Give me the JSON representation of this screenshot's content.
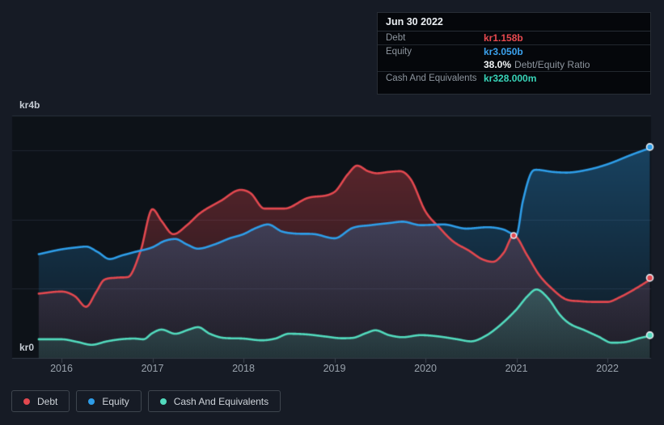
{
  "tooltip": {
    "date": "Jun 30 2022",
    "debt_label": "Debt",
    "debt_value": "kr1.158b",
    "equity_label": "Equity",
    "equity_value": "kr3.050b",
    "ratio_value": "38.0%",
    "ratio_label": "Debt/Equity Ratio",
    "cash_label": "Cash And Equivalents",
    "cash_value": "kr328.000m"
  },
  "y_axis": {
    "top": "kr4b",
    "bottom": "kr0"
  },
  "x_axis": {
    "ticks": [
      "2016",
      "2017",
      "2018",
      "2019",
      "2020",
      "2021",
      "2022"
    ]
  },
  "legend": {
    "items": [
      {
        "label": "Debt",
        "color": "#e2484f"
      },
      {
        "label": "Equity",
        "color": "#2e9de8"
      },
      {
        "label": "Cash And Equivalents",
        "color": "#52dabd"
      }
    ]
  },
  "colors": {
    "page_bg": "#161b25",
    "plot_bg": "#0d1218",
    "gridline": "#1f2530",
    "plot_top_border": "#2a313c",
    "baseline": "#333b47",
    "tick": "#3d444e",
    "marker_ring": "#e9eef3"
  },
  "chart_data": {
    "type": "area",
    "title": "Debt to Equity history (tooltip shows Jun 30 2022)",
    "currency_unit": "kr (Swedish krona), billions",
    "x_range": [
      2015.75,
      2022.5
    ],
    "ylim": [
      0,
      4
    ],
    "y_top_label": "kr4b",
    "y_bottom_label": "kr0",
    "x_tick_years": [
      2016,
      2017,
      2018,
      2019,
      2020,
      2021,
      2022
    ],
    "gridlines_y": [
      1,
      2,
      3
    ],
    "grid": true,
    "legend_position": "bottom-left",
    "series": [
      {
        "name": "Debt",
        "color": "#e2484f",
        "points": [
          [
            2015.75,
            0.93
          ],
          [
            2016.0,
            0.96
          ],
          [
            2016.15,
            0.89
          ],
          [
            2016.27,
            0.74
          ],
          [
            2016.38,
            0.95
          ],
          [
            2016.47,
            1.13
          ],
          [
            2016.6,
            1.16
          ],
          [
            2016.73,
            1.17
          ],
          [
            2016.87,
            1.55
          ],
          [
            2017.0,
            2.15
          ],
          [
            2017.1,
            1.98
          ],
          [
            2017.23,
            1.79
          ],
          [
            2017.38,
            1.92
          ],
          [
            2017.52,
            2.09
          ],
          [
            2017.75,
            2.27
          ],
          [
            2017.97,
            2.43
          ],
          [
            2018.08,
            2.38
          ],
          [
            2018.23,
            2.16
          ],
          [
            2018.45,
            2.16
          ],
          [
            2018.7,
            2.31
          ],
          [
            2019.0,
            2.4
          ],
          [
            2019.15,
            2.66
          ],
          [
            2019.25,
            2.78
          ],
          [
            2019.37,
            2.7
          ],
          [
            2019.47,
            2.67
          ],
          [
            2019.6,
            2.69
          ],
          [
            2019.72,
            2.7
          ],
          [
            2019.84,
            2.58
          ],
          [
            2020.0,
            2.12
          ],
          [
            2020.15,
            1.89
          ],
          [
            2020.3,
            1.69
          ],
          [
            2020.48,
            1.55
          ],
          [
            2020.62,
            1.43
          ],
          [
            2020.74,
            1.39
          ],
          [
            2020.86,
            1.52
          ],
          [
            2020.97,
            1.77
          ],
          [
            2021.12,
            1.48
          ],
          [
            2021.25,
            1.2
          ],
          [
            2021.4,
            0.99
          ],
          [
            2021.54,
            0.85
          ],
          [
            2021.7,
            0.82
          ],
          [
            2021.88,
            0.81
          ],
          [
            2022.0,
            0.81
          ],
          [
            2022.14,
            0.88
          ],
          [
            2022.32,
            1.01
          ],
          [
            2022.5,
            1.158
          ]
        ]
      },
      {
        "name": "Equity",
        "color": "#2e9de8",
        "points": [
          [
            2015.75,
            1.5
          ],
          [
            2016.0,
            1.57
          ],
          [
            2016.18,
            1.6
          ],
          [
            2016.27,
            1.61
          ],
          [
            2016.4,
            1.53
          ],
          [
            2016.53,
            1.43
          ],
          [
            2016.66,
            1.48
          ],
          [
            2016.8,
            1.53
          ],
          [
            2017.0,
            1.6
          ],
          [
            2017.13,
            1.69
          ],
          [
            2017.25,
            1.72
          ],
          [
            2017.38,
            1.64
          ],
          [
            2017.5,
            1.58
          ],
          [
            2017.68,
            1.64
          ],
          [
            2017.85,
            1.73
          ],
          [
            2018.0,
            1.79
          ],
          [
            2018.14,
            1.88
          ],
          [
            2018.27,
            1.93
          ],
          [
            2018.42,
            1.83
          ],
          [
            2018.55,
            1.8
          ],
          [
            2018.78,
            1.79
          ],
          [
            2019.0,
            1.73
          ],
          [
            2019.2,
            1.88
          ],
          [
            2019.4,
            1.92
          ],
          [
            2019.6,
            1.95
          ],
          [
            2019.75,
            1.97
          ],
          [
            2019.95,
            1.92
          ],
          [
            2020.2,
            1.93
          ],
          [
            2020.45,
            1.87
          ],
          [
            2020.68,
            1.89
          ],
          [
            2020.85,
            1.86
          ],
          [
            2021.0,
            1.78
          ],
          [
            2021.07,
            2.26
          ],
          [
            2021.17,
            2.69
          ],
          [
            2021.22,
            2.72
          ],
          [
            2021.4,
            2.69
          ],
          [
            2021.55,
            2.68
          ],
          [
            2021.78,
            2.72
          ],
          [
            2022.0,
            2.8
          ],
          [
            2022.27,
            2.94
          ],
          [
            2022.5,
            3.05
          ]
        ]
      },
      {
        "name": "Cash And Equivalents",
        "color": "#52dabd",
        "points": [
          [
            2015.75,
            0.27
          ],
          [
            2016.0,
            0.27
          ],
          [
            2016.18,
            0.23
          ],
          [
            2016.33,
            0.19
          ],
          [
            2016.5,
            0.24
          ],
          [
            2016.65,
            0.27
          ],
          [
            2016.8,
            0.28
          ],
          [
            2016.9,
            0.27
          ],
          [
            2017.0,
            0.36
          ],
          [
            2017.1,
            0.41
          ],
          [
            2017.25,
            0.35
          ],
          [
            2017.4,
            0.41
          ],
          [
            2017.5,
            0.445
          ],
          [
            2017.63,
            0.35
          ],
          [
            2017.78,
            0.29
          ],
          [
            2018.0,
            0.28
          ],
          [
            2018.2,
            0.255
          ],
          [
            2018.35,
            0.28
          ],
          [
            2018.5,
            0.35
          ],
          [
            2018.7,
            0.34
          ],
          [
            2018.9,
            0.31
          ],
          [
            2019.08,
            0.285
          ],
          [
            2019.2,
            0.29
          ],
          [
            2019.35,
            0.36
          ],
          [
            2019.45,
            0.4
          ],
          [
            2019.6,
            0.33
          ],
          [
            2019.75,
            0.3
          ],
          [
            2019.95,
            0.33
          ],
          [
            2020.15,
            0.31
          ],
          [
            2020.35,
            0.27
          ],
          [
            2020.5,
            0.24
          ],
          [
            2020.65,
            0.31
          ],
          [
            2020.8,
            0.45
          ],
          [
            2021.0,
            0.7
          ],
          [
            2021.12,
            0.89
          ],
          [
            2021.22,
            0.99
          ],
          [
            2021.35,
            0.86
          ],
          [
            2021.48,
            0.62
          ],
          [
            2021.58,
            0.5
          ],
          [
            2021.75,
            0.4
          ],
          [
            2021.9,
            0.31
          ],
          [
            2022.05,
            0.22
          ],
          [
            2022.2,
            0.23
          ],
          [
            2022.35,
            0.285
          ],
          [
            2022.5,
            0.328
          ]
        ]
      }
    ],
    "end_markers": [
      {
        "series": "Debt",
        "x": 2022.5,
        "value": 1.158
      },
      {
        "series": "Equity",
        "x": 2022.5,
        "value": 3.05
      },
      {
        "series": "Cash And Equivalents",
        "x": 2022.5,
        "value": 0.328
      }
    ],
    "extra_markers": [
      {
        "series": "Debt",
        "x": 2020.97,
        "value": 1.77
      }
    ]
  }
}
